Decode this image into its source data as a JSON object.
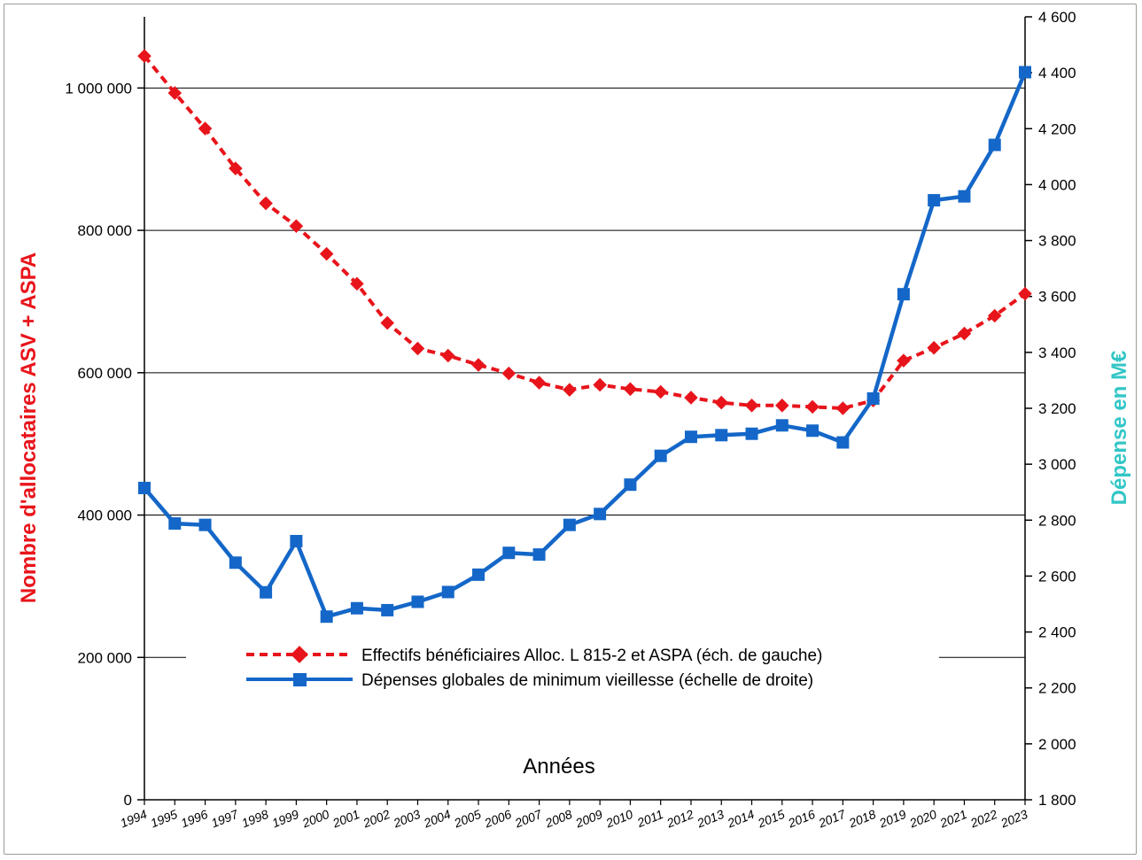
{
  "chart_data": {
    "type": "line",
    "x": [
      "1994",
      "1995",
      "1996",
      "1997",
      "1998",
      "1999",
      "2000",
      "2001",
      "2002",
      "2003",
      "2004",
      "2005",
      "2006",
      "2007",
      "2008",
      "2009",
      "2010",
      "2011",
      "2012",
      "2013",
      "2014",
      "2015",
      "2016",
      "2017",
      "2018",
      "2019",
      "2020",
      "2021",
      "2022",
      "2023"
    ],
    "xlabel": "Années",
    "ylabel_left": "Nombre d'allocataires ASV + ASPA",
    "ylabel_right": "Dépense en M€",
    "ylim_left": [
      0,
      1100000
    ],
    "ylim_right": [
      1800,
      4600
    ],
    "left_ticks": [
      {
        "value": 0,
        "label": "0"
      },
      {
        "value": 200000,
        "label": "200 000"
      },
      {
        "value": 400000,
        "label": "400 000"
      },
      {
        "value": 600000,
        "label": "600 000"
      },
      {
        "value": 800000,
        "label": "800 000"
      },
      {
        "value": 1000000,
        "label": "1 000 000"
      }
    ],
    "right_ticks": [
      {
        "value": 1800,
        "label": "1 800"
      },
      {
        "value": 2000,
        "label": "2 000"
      },
      {
        "value": 2200,
        "label": "2 200"
      },
      {
        "value": 2400,
        "label": "2 400"
      },
      {
        "value": 2600,
        "label": "2 600"
      },
      {
        "value": 2800,
        "label": "2 800"
      },
      {
        "value": 3000,
        "label": "3 000"
      },
      {
        "value": 3200,
        "label": "3 200"
      },
      {
        "value": 3400,
        "label": "3 400"
      },
      {
        "value": 3600,
        "label": "3 600"
      },
      {
        "value": 3800,
        "label": "3 800"
      },
      {
        "value": 4000,
        "label": "4 000"
      },
      {
        "value": 4200,
        "label": "4 200"
      },
      {
        "value": 4400,
        "label": "4 400"
      },
      {
        "value": 4600,
        "label": "4 600"
      }
    ],
    "grid": true,
    "legend_position": "bottom-center",
    "series": [
      {
        "name": "Effectifs bénéficiaires Alloc. L 815-2 et ASPA (éch. de gauche)",
        "axis": "left",
        "style": "dashed",
        "marker": "diamond",
        "color": "#e8141b",
        "values": [
          1045000,
          993000,
          943000,
          887000,
          838000,
          806000,
          767000,
          725000,
          670000,
          634000,
          624000,
          611000,
          599000,
          586000,
          576000,
          583000,
          577000,
          573000,
          565000,
          558000,
          554000,
          554000,
          552000,
          550000,
          561000,
          617000,
          635000,
          655000,
          680000,
          711000
        ]
      },
      {
        "name": "Dépenses globales de minimum vieillesse (échelle de droite)",
        "axis": "right",
        "style": "solid",
        "marker": "square",
        "color": "#1467c8",
        "values": [
          2915,
          2788,
          2783,
          2648,
          2542,
          2725,
          2455,
          2485,
          2478,
          2508,
          2543,
          2605,
          2683,
          2677,
          2783,
          2822,
          2927,
          3030,
          3098,
          3104,
          3109,
          3139,
          3120,
          3078,
          3235,
          3608,
          3944,
          3958,
          4142,
          4402
        ]
      }
    ]
  }
}
